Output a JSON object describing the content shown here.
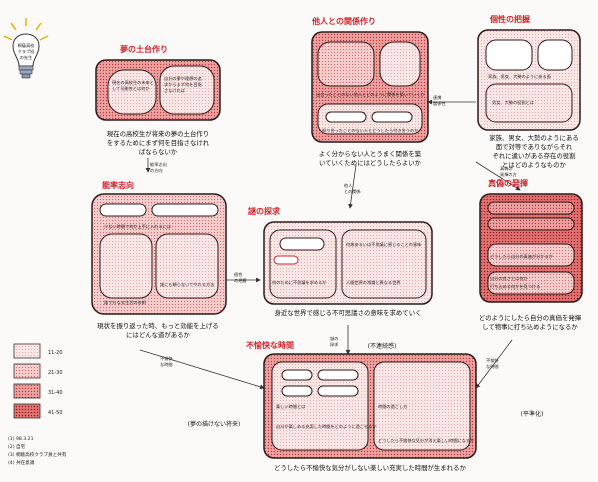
{
  "titles": {
    "yume": "夢の土台作り",
    "tasha": "他人との関係作り",
    "kosei": "個性の把握",
    "noritsu": "能率志向",
    "nazo": "謎の探求",
    "shingi": "真偽の発揮",
    "fuyukai": "不愉快な時間"
  },
  "captions": {
    "yume": [
      "現在の高校生が将来の夢の土台作り",
      "をするためにまず何を目指さなけれ",
      "ばならないか"
    ],
    "tasha": [
      "よく分からない人とうまく関係を築",
      "いていくためにはどうしたらよいか"
    ],
    "kosei": [
      "家族、男女、大勢のようにある",
      "面で対等でありながらそれ",
      "ぞれに違いがある存在の役割",
      "とはどのようなものか"
    ],
    "noritsu": [
      "現状を振り返った時、もっと効能を上げる",
      "にはどんな道があるか"
    ],
    "nazo": [
      "身近な世界で感じる不可思議さの意味を求めていく"
    ],
    "shingi": [
      "どのようにしたら自分の真価を発揮",
      "して物事に打ち込めようになるか"
    ],
    "fuyukai": [
      "どうしたら不愉快な気分がしない楽しい充実した時間が生まれるか"
    ]
  },
  "tags": {
    "yume_future": "(夢の描けない将来)",
    "fuyukai_continuous": "(不連続感)",
    "fuyukai_flat": "(平準化)"
  },
  "bulb_label": [
    "桐蔭高校",
    "クラブ班",
    "の先生"
  ],
  "inner_texts": {
    "yume_a": [
      "現在の高校生の未来と",
      "して可能性とは何か"
    ],
    "yume_b": [
      "自分の夢や理想の追",
      "求からまず何を目指",
      "さなければ"
    ],
    "tasha_a": "出会ったことのない他人とどのように関係を築いていくか",
    "tasha_b": "知り合ったことのない人とどうしたら付き合うのか",
    "kosei_a": "家族、男女、大勢のようにある面",
    "kosei_b": "男女、大勢の役割とは",
    "noritsu_a": "少ない時間で何か上手に入れるには",
    "noritsu_b": "誰でもなる生活の技術",
    "noritsu_c": "誰にも頼らないでやれる方法",
    "nazo_a": "何のために不思議を求めるか",
    "nazo_b": "人間世界の常識と異なる世界",
    "nazo_c": "何故あるいは不思議に感じることの意味",
    "shingi_a": "どうしたら自分の真価が分かるか",
    "shingi_b": "自分の良さとは何か",
    "shingi_c": "打ち込める何かを見つける",
    "fuyukai_a": "楽しい時間とは",
    "fuyukai_b": "時間の過ごし方",
    "fuyukai_c": "自分が楽しめる充実した時間をどのように過ごせるか",
    "fuyukai_d": "どうしたら不愉快な気分が消え楽しい時間になるか"
  },
  "arrows": {
    "a1": [
      "連携",
      "関係性"
    ],
    "a2": [
      "他人",
      "との関係"
    ],
    "a3": [
      "能率志向",
      "の方向"
    ],
    "a4": [
      "真偽の",
      "発揮の方"
    ],
    "a5": [
      "不愉快",
      "な時間"
    ],
    "a6": [
      "不愉快",
      "な時間"
    ],
    "a7": [
      "謎の",
      "探求"
    ],
    "a8": [
      "個性",
      "の把握"
    ]
  },
  "legend": [
    {
      "label": "11-20",
      "color": "#fbe4e4",
      "dots": "#e59a9a"
    },
    {
      "label": "21-30",
      "color": "#f6c9c9",
      "dots": "#d96a6a"
    },
    {
      "label": "31-40",
      "color": "#ec9e9e",
      "dots": "#c83c3c"
    },
    {
      "label": "41-50",
      "color": "#df6b6b",
      "dots": "#b51f1f"
    }
  ],
  "notes": [
    "(1) 98.3.21",
    "(2) 自宅",
    "(3) 桐蔭高校クラブ員と共有",
    "(4) 共在意識"
  ],
  "colors": {
    "title": "#d2232a",
    "border": "#2b1a1a"
  }
}
